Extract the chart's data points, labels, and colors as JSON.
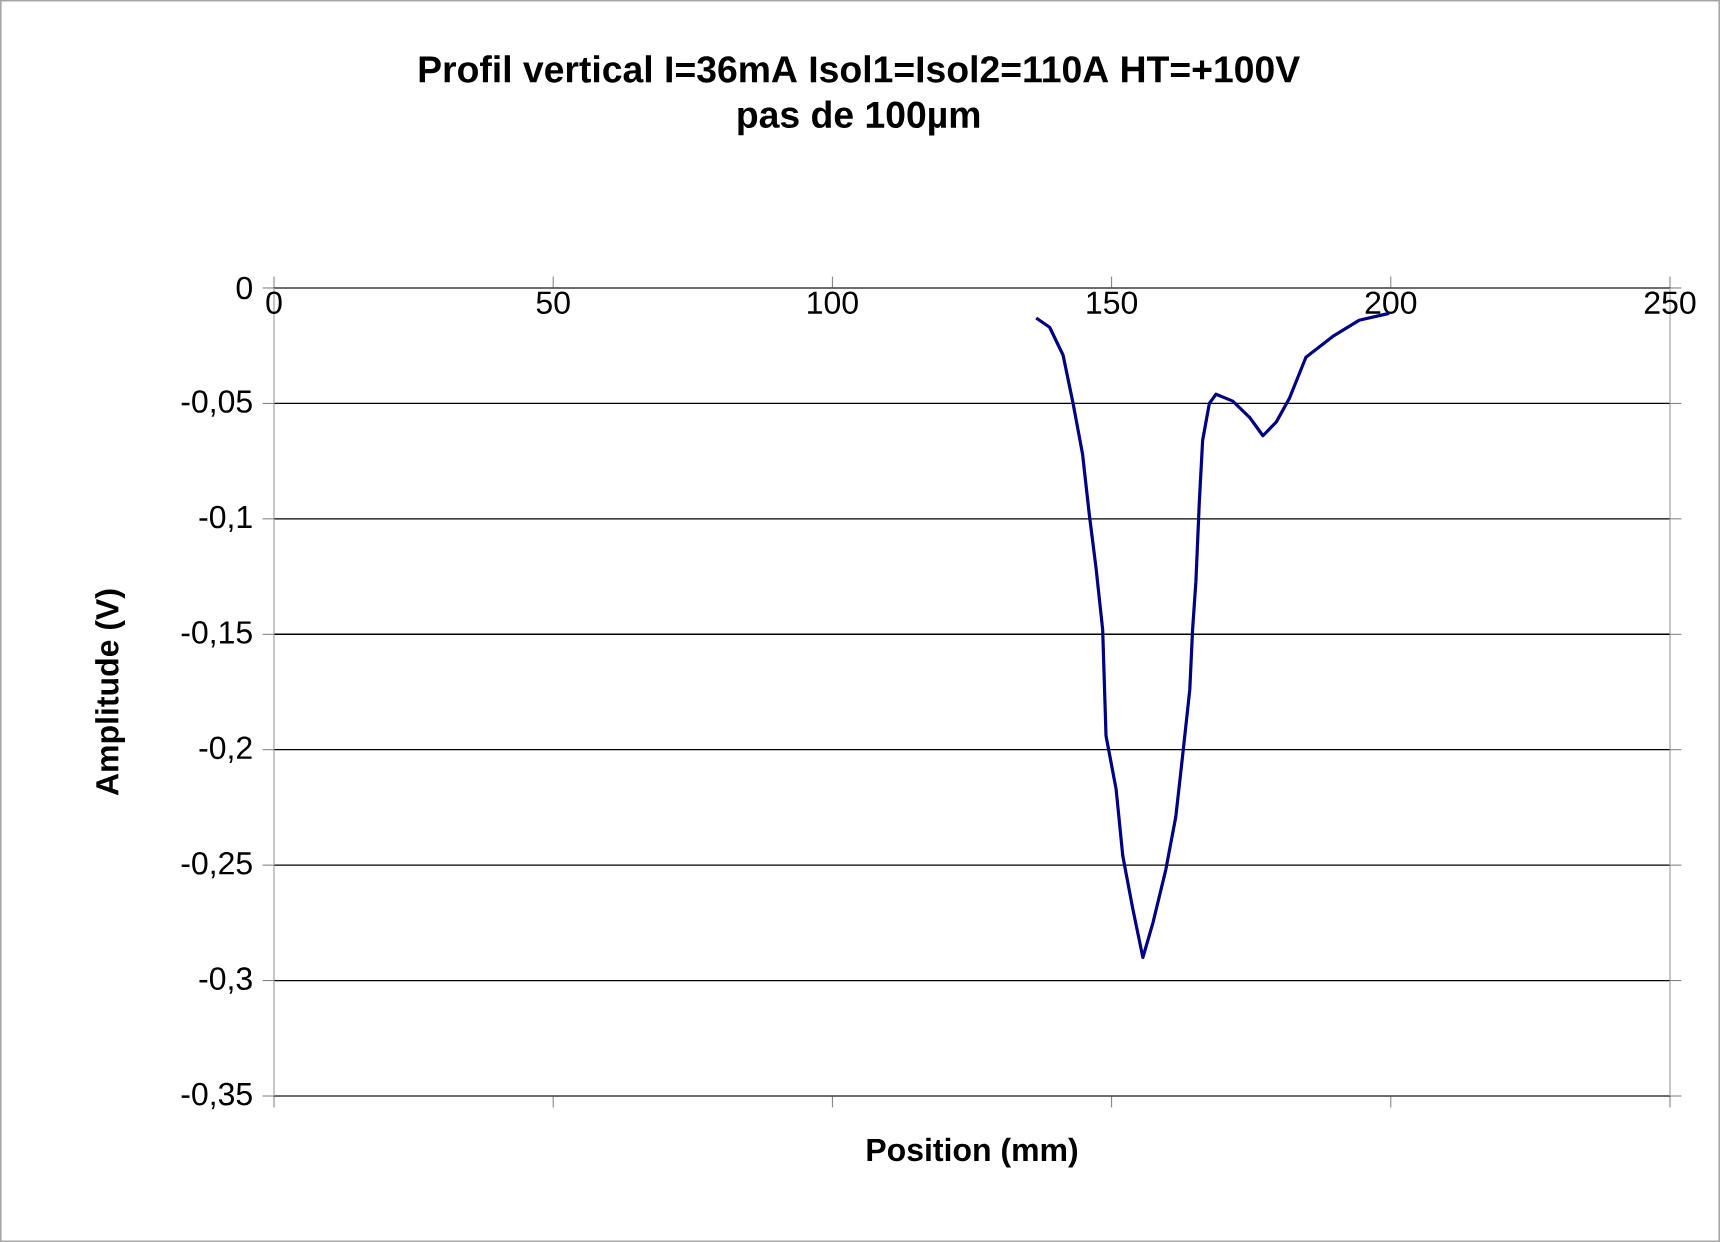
{
  "chart_data": {
    "type": "line",
    "title": "Profil vertical I=36mA Isol1=Isol2=110A HT=+100V",
    "subtitle": "pas de 100µm",
    "xlabel": "Position (mm)",
    "ylabel": "Amplitude (V)",
    "xlim": [
      0,
      250
    ],
    "ylim": [
      -0.35,
      0
    ],
    "xticks": [
      0,
      50,
      100,
      150,
      200,
      250
    ],
    "yticks": [
      {
        "value": 0,
        "label": "0"
      },
      {
        "value": -0.05,
        "label": "-0,05"
      },
      {
        "value": -0.1,
        "label": "-0,1"
      },
      {
        "value": -0.15,
        "label": "-0,15"
      },
      {
        "value": -0.2,
        "label": "-0,2"
      },
      {
        "value": -0.25,
        "label": "-0,25"
      },
      {
        "value": -0.3,
        "label": "-0,3"
      },
      {
        "value": -0.35,
        "label": "-0,35"
      }
    ],
    "grid": "y",
    "marker": "none",
    "line_style": "solid",
    "series": [
      {
        "color": "#000080",
        "x": [
          136.5,
          138.9,
          141.3,
          143.1,
          144.8,
          146.0,
          147.2,
          148.4,
          149.0,
          150.8,
          152.0,
          153.8,
          155.6,
          157.4,
          159.7,
          161.5,
          162.7,
          164.0,
          164.5,
          165.1,
          165.7,
          166.3,
          167.5,
          168.7,
          171.7,
          174.7,
          177.1,
          179.5,
          181.8,
          184.8,
          189.6,
          194.3,
          199.7
        ],
        "values": [
          -0.013,
          -0.017,
          -0.029,
          -0.05,
          -0.072,
          -0.098,
          -0.121,
          -0.148,
          -0.194,
          -0.217,
          -0.246,
          -0.269,
          -0.29,
          -0.275,
          -0.252,
          -0.229,
          -0.203,
          -0.174,
          -0.148,
          -0.127,
          -0.093,
          -0.066,
          -0.05,
          -0.046,
          -0.049,
          -0.056,
          -0.064,
          -0.058,
          -0.048,
          -0.03,
          -0.021,
          -0.014,
          -0.011
        ]
      }
    ]
  }
}
